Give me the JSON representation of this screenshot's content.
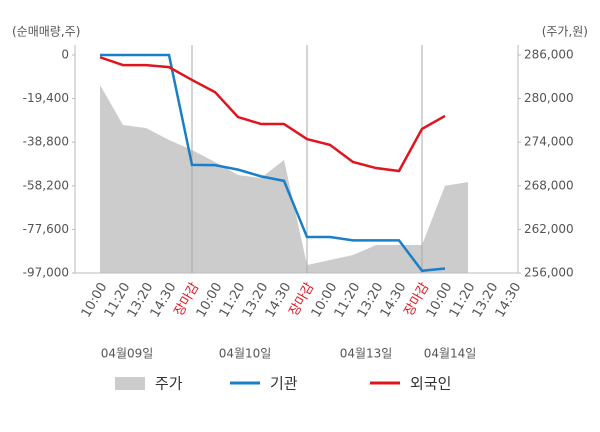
{
  "chart_data": {
    "type": "line",
    "y_axis_label": "(순매매량,주)",
    "y2_axis_label": "(주가,원)",
    "categories": [
      "10:00",
      "11:20",
      "13:20",
      "14:30",
      "장마감",
      "10:00",
      "11:20",
      "13:20",
      "14:30",
      "장마감",
      "10:00",
      "11:20",
      "13:20",
      "14:30",
      "장마감",
      "10:00",
      "11:20",
      "13:20",
      "14:30"
    ],
    "x_label_colors": [
      "#555",
      "#555",
      "#555",
      "#555",
      "#e0141e",
      "#555",
      "#555",
      "#555",
      "#555",
      "#e0141e",
      "#555",
      "#555",
      "#555",
      "#555",
      "#e0141e",
      "#555",
      "#555",
      "#555",
      "#555"
    ],
    "dates": [
      "04월09일",
      "04월10일",
      "04월13일",
      "04월14일"
    ],
    "ylim": [
      -97000,
      0
    ],
    "yticks": [
      0,
      {
        "value": -19400,
        "label": "-19,400"
      },
      {
        "value": -38800,
        "label": "-38,800"
      },
      {
        "value": -58200,
        "label": "-58,200"
      },
      {
        "value": -77600,
        "label": "-77,600"
      },
      {
        "value": -97000,
        "label": "-97,000"
      }
    ],
    "y2lim": [
      256000,
      286000
    ],
    "y2ticks": [
      {
        "value": 256000,
        "label": "256,000"
      },
      {
        "value": 262000,
        "label": "262,000"
      },
      {
        "value": 268000,
        "label": "268,000"
      },
      {
        "value": 274000,
        "label": "274,000"
      },
      {
        "value": 280000,
        "label": "280,000"
      },
      {
        "value": 286000,
        "label": "286,000"
      }
    ],
    "series": [
      {
        "name": "주가",
        "kind": "area",
        "axis": "y2",
        "color": "#cccccc",
        "values": [
          281870,
          276370,
          275950,
          274300,
          272930,
          271280,
          269490,
          269070,
          271550,
          257100,
          257790,
          258480,
          259850,
          259850,
          259850,
          268000,
          268500,
          null,
          null
        ]
      },
      {
        "name": "기관",
        "kind": "line",
        "color": "#1a7fc8",
        "values": [
          0,
          0,
          0,
          0,
          -48900,
          -49000,
          -51000,
          -54000,
          -56000,
          -81000,
          -81000,
          -82500,
          -82500,
          -82500,
          -96000,
          -95000,
          null,
          null,
          null
        ]
      },
      {
        "name": "외국인",
        "kind": "line",
        "color": "#e0141e",
        "values": [
          -1000,
          -4500,
          -4500,
          -5400,
          -11100,
          -16500,
          -27600,
          -30700,
          -30700,
          -37400,
          -40000,
          -47600,
          -50300,
          -51600,
          -32900,
          -27100,
          null,
          null,
          null
        ]
      }
    ]
  }
}
